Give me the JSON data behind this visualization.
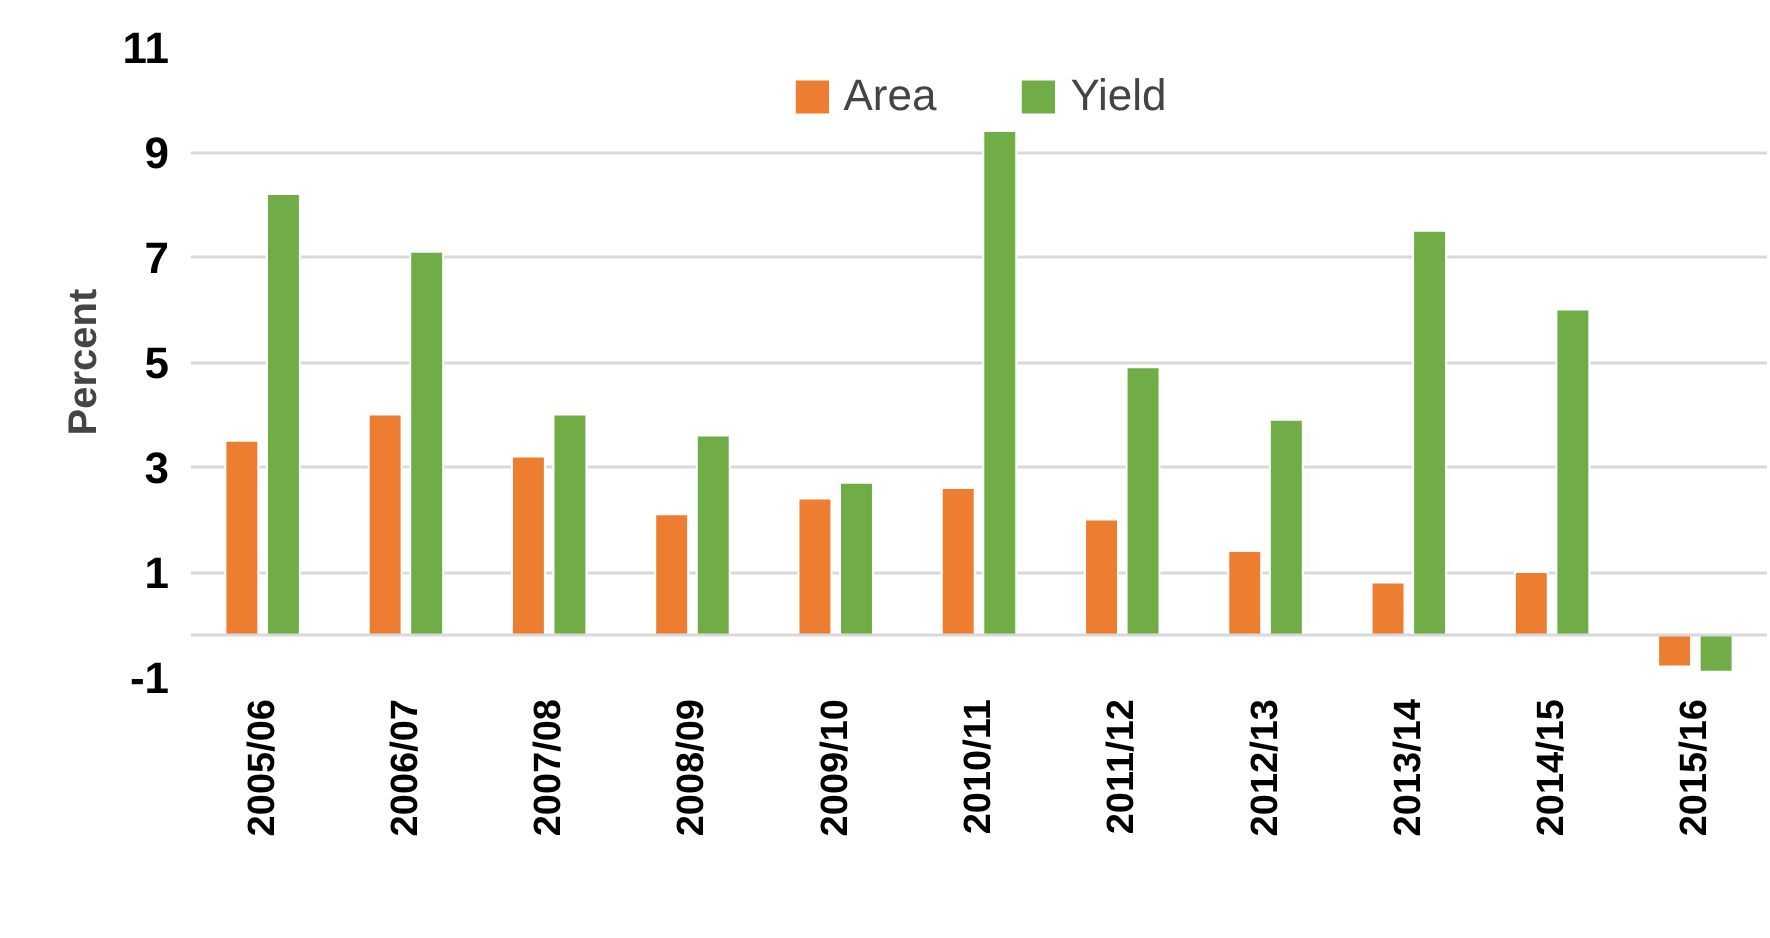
{
  "chart_data": {
    "type": "bar",
    "ylabel": "Percent",
    "categories": [
      "2005/06",
      "2006/07",
      "2007/08",
      "2008/09",
      "2009/10",
      "2010/11",
      "2011/12",
      "2012/13",
      "2013/14",
      "2014/15",
      "2015/16"
    ],
    "series": [
      {
        "name": "Area",
        "color": "#ed7d31",
        "base": [
          -0.2,
          -0.2,
          -0.2,
          -0.2,
          -0.2,
          -0.2,
          -0.2,
          -0.2,
          -0.2,
          -0.2,
          -0.2
        ],
        "values": [
          3.7,
          4.2,
          3.4,
          2.3,
          2.6,
          2.8,
          2.2,
          1.6,
          1.0,
          1.2,
          -0.6
        ]
      },
      {
        "name": "Yield",
        "color": "#70ad47",
        "base": [
          -0.2,
          -0.2,
          -0.2,
          -0.2,
          -0.2,
          -0.2,
          -0.2,
          -0.2,
          -0.2,
          -0.2,
          -0.2
        ],
        "values": [
          8.4,
          7.3,
          4.2,
          3.8,
          2.9,
          9.6,
          5.1,
          4.1,
          7.7,
          6.2,
          -0.7
        ]
      }
    ],
    "ylim": [
      -1,
      11
    ],
    "yticks": [
      -1,
      1,
      3,
      5,
      7,
      9,
      11
    ],
    "grid": "y",
    "legend": "top"
  }
}
